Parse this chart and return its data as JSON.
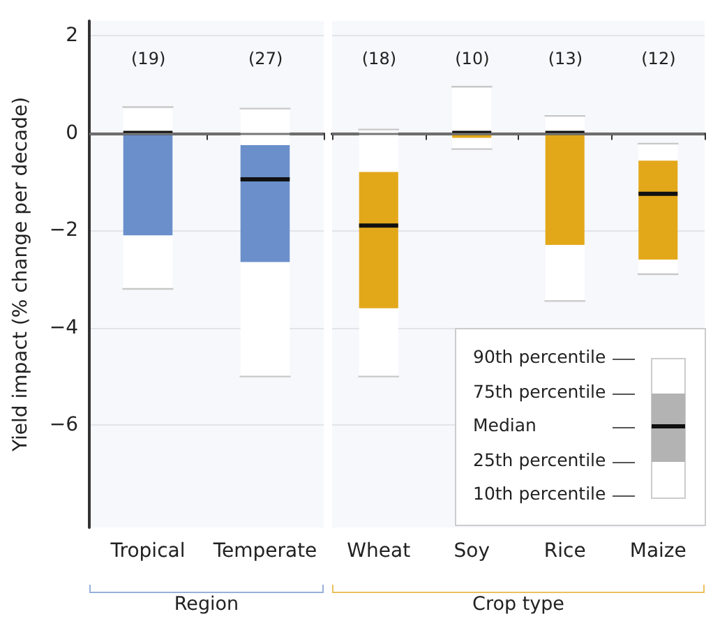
{
  "chart_data": [
    {
      "type": "box",
      "xlabel": "Region",
      "ylabel": "Yield impact (% change per decade)",
      "categories": [
        "Tropical",
        "Temperate"
      ],
      "ylim": [
        -8.1,
        2.3
      ],
      "yticks": [
        {
          "value": -6,
          "label": "−6"
        },
        {
          "value": -4,
          "label": "−4"
        },
        {
          "value": -2,
          "label": "−2"
        },
        0,
        2
      ],
      "grid": "y",
      "ref_lines": [
        {
          "axis": "y",
          "value": 0,
          "color": "#777777"
        }
      ],
      "series": [
        {
          "color": "#6a8fca",
          "boxes": [
            {
              "low": -3.2,
              "q1": -2.1,
              "median": 0,
              "q3": 0,
              "high": 0.53
            },
            {
              "low": -5.0,
              "q1": -2.65,
              "median": -0.95,
              "q3": -0.25,
              "high": 0.5
            }
          ]
        }
      ],
      "annotations": [
        "(19)",
        "(27)"
      ]
    },
    {
      "type": "box",
      "xlabel": "Crop type",
      "categories": [
        "Wheat",
        "Soy",
        "Rice",
        "Maize"
      ],
      "ylim": [
        -8.1,
        2.3
      ],
      "yticks": [
        -6,
        -4,
        -2,
        0,
        2
      ],
      "grid": "y",
      "tick_labels": "x",
      "ref_lines": [
        {
          "axis": "y",
          "value": 0,
          "color": "#777777"
        }
      ],
      "series": [
        {
          "color": "#e3a81a",
          "boxes": [
            {
              "low": -5.0,
              "q1": -3.6,
              "median": -1.9,
              "q3": -0.8,
              "high": 0.07
            },
            {
              "low": -0.33,
              "q1": -0.1,
              "median": 0,
              "q3": 0,
              "high": 0.95
            },
            {
              "low": -3.45,
              "q1": -2.3,
              "median": 0,
              "q3": 0,
              "high": 0.35
            },
            {
              "low": -2.9,
              "q1": -2.6,
              "median": -1.25,
              "q3": -0.57,
              "high": -0.22
            }
          ]
        }
      ],
      "annotations": [
        "(18)",
        "(10)",
        "(13)",
        "(12)",
        "90th percentile",
        "75th percentile",
        "Median",
        "25th percentile",
        "10th percentile"
      ]
    }
  ]
}
